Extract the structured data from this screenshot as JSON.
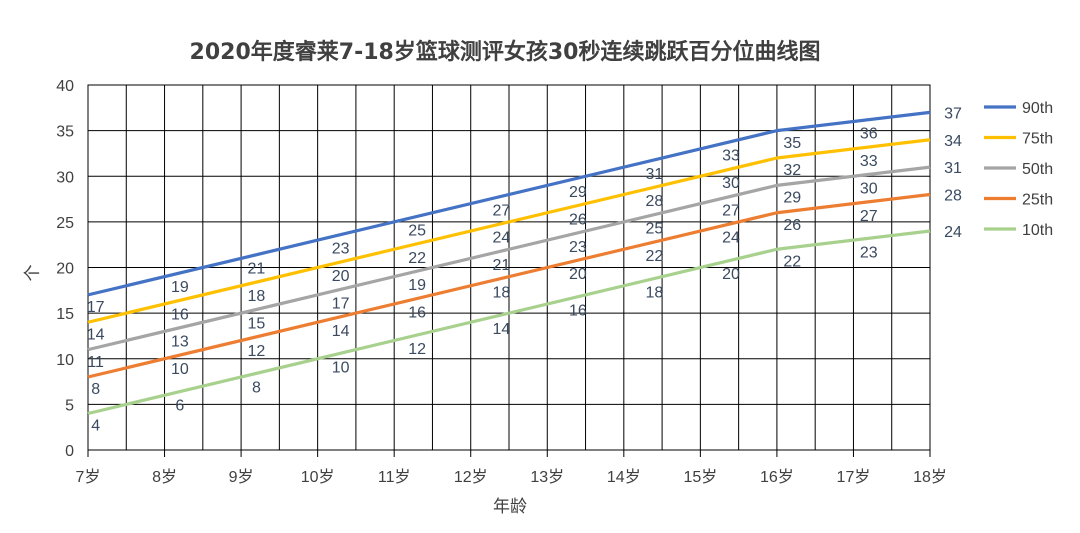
{
  "chart_data": {
    "type": "line",
    "title": "2020年度睿莱7-18岁篮球测评女孩30秒连续跳跃百分位曲线图",
    "xlabel": "年龄",
    "ylabel": "个",
    "categories": [
      "7岁",
      "8岁",
      "9岁",
      "10岁",
      "11岁",
      "12岁",
      "13岁",
      "14岁",
      "15岁",
      "16岁",
      "17岁",
      "18岁"
    ],
    "ylim": [
      0,
      40
    ],
    "yticks": [
      0,
      5,
      10,
      15,
      20,
      25,
      30,
      35,
      40
    ],
    "ytick_labels": [
      "0",
      "5",
      "10",
      "15",
      "20",
      "25",
      "30",
      "35",
      "40"
    ],
    "grid": true,
    "legend_position": "right",
    "series": [
      {
        "name": "90th",
        "color": "#4472c4",
        "anchor_x": [
          7,
          16,
          18
        ],
        "anchor_y": [
          17,
          35,
          37
        ],
        "labels": [
          {
            "x": 7.1,
            "text": "17"
          },
          {
            "x": 8.2,
            "text": "19"
          },
          {
            "x": 9.2,
            "text": "21"
          },
          {
            "x": 10.3,
            "text": "23"
          },
          {
            "x": 11.3,
            "text": "25"
          },
          {
            "x": 12.4,
            "text": "27"
          },
          {
            "x": 13.4,
            "text": "29"
          },
          {
            "x": 14.4,
            "text": "31"
          },
          {
            "x": 15.4,
            "text": "33"
          },
          {
            "x": 16.2,
            "text": "35"
          },
          {
            "x": 17.2,
            "text": "36"
          }
        ],
        "end_label": "37"
      },
      {
        "name": "75th",
        "color": "#ffc000",
        "anchor_x": [
          7,
          16,
          18
        ],
        "anchor_y": [
          14,
          32,
          34
        ],
        "labels": [
          {
            "x": 7.1,
            "text": "14"
          },
          {
            "x": 8.2,
            "text": "16"
          },
          {
            "x": 9.2,
            "text": "18"
          },
          {
            "x": 10.3,
            "text": "20"
          },
          {
            "x": 11.3,
            "text": "22"
          },
          {
            "x": 12.4,
            "text": "24"
          },
          {
            "x": 13.4,
            "text": "26"
          },
          {
            "x": 14.4,
            "text": "28"
          },
          {
            "x": 15.4,
            "text": "30"
          },
          {
            "x": 16.2,
            "text": "32"
          },
          {
            "x": 17.2,
            "text": "33"
          }
        ],
        "end_label": "34"
      },
      {
        "name": "50th",
        "color": "#a5a5a5",
        "anchor_x": [
          7,
          16,
          18
        ],
        "anchor_y": [
          11,
          29,
          31
        ],
        "labels": [
          {
            "x": 7.1,
            "text": "11"
          },
          {
            "x": 8.2,
            "text": "13"
          },
          {
            "x": 9.2,
            "text": "15"
          },
          {
            "x": 10.3,
            "text": "17"
          },
          {
            "x": 11.3,
            "text": "19"
          },
          {
            "x": 12.4,
            "text": "21"
          },
          {
            "x": 13.4,
            "text": "23"
          },
          {
            "x": 14.4,
            "text": "25"
          },
          {
            "x": 15.4,
            "text": "27"
          },
          {
            "x": 16.2,
            "text": "29"
          },
          {
            "x": 17.2,
            "text": "30"
          }
        ],
        "end_label": "31"
      },
      {
        "name": "25th",
        "color": "#ed7d31",
        "anchor_x": [
          7,
          16,
          18
        ],
        "anchor_y": [
          8,
          26,
          28
        ],
        "labels": [
          {
            "x": 7.1,
            "text": "8"
          },
          {
            "x": 8.2,
            "text": "10"
          },
          {
            "x": 9.2,
            "text": "12"
          },
          {
            "x": 10.3,
            "text": "14"
          },
          {
            "x": 11.3,
            "text": "16"
          },
          {
            "x": 12.4,
            "text": "18"
          },
          {
            "x": 13.4,
            "text": "20"
          },
          {
            "x": 14.4,
            "text": "22"
          },
          {
            "x": 15.4,
            "text": "24"
          },
          {
            "x": 16.2,
            "text": "26"
          },
          {
            "x": 17.2,
            "text": "27"
          }
        ],
        "end_label": "28"
      },
      {
        "name": "10th",
        "color": "#a9d18e",
        "anchor_x": [
          7,
          16,
          18
        ],
        "anchor_y": [
          4,
          22,
          24
        ],
        "labels": [
          {
            "x": 7.1,
            "text": "4"
          },
          {
            "x": 8.2,
            "text": "6"
          },
          {
            "x": 9.2,
            "text": "8"
          },
          {
            "x": 10.3,
            "text": "10"
          },
          {
            "x": 11.3,
            "text": "12"
          },
          {
            "x": 12.4,
            "text": "14"
          },
          {
            "x": 13.4,
            "text": "16"
          },
          {
            "x": 14.4,
            "text": "18"
          },
          {
            "x": 15.4,
            "text": "20"
          },
          {
            "x": 16.2,
            "text": "22"
          },
          {
            "x": 17.2,
            "text": "23"
          }
        ],
        "end_label": "24"
      }
    ]
  }
}
